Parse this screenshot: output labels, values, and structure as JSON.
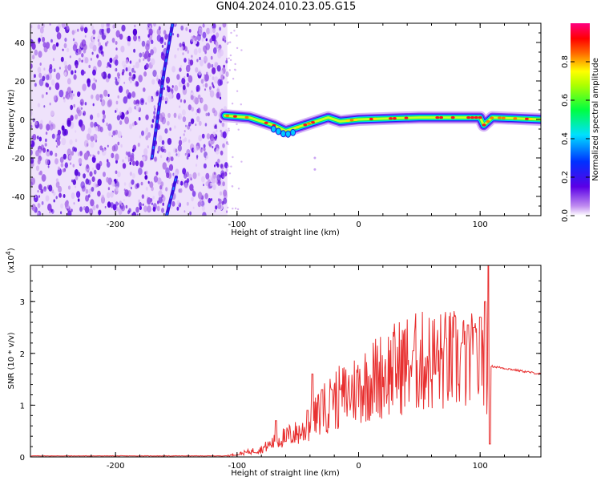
{
  "title": "GN04.2024.010.23.05.G15",
  "chart_data": [
    {
      "type": "heatmap",
      "xlabel": "Height of straight line (km)",
      "ylabel": "Frequency (Hz)",
      "xlim": [
        -270,
        150
      ],
      "ylim": [
        -50,
        50
      ],
      "xticks": [
        -200,
        -100,
        0,
        100
      ],
      "yticks": [
        -40,
        -20,
        0,
        20,
        40
      ],
      "colorbar": {
        "label": "Normalized spectral amplitude",
        "range": [
          0,
          1
        ],
        "ticks": [
          "0.0",
          "0.2",
          "0.4",
          "0.6",
          "0.8"
        ]
      },
      "features": {
        "noise_region_x": [
          -270,
          -108
        ],
        "satellite_trace_1": [
          [
            -170,
            -20
          ],
          [
            -160,
            25
          ],
          [
            -153,
            50
          ]
        ],
        "satellite_trace_2": [
          [
            -158,
            -50
          ],
          [
            -150,
            -30
          ]
        ],
        "ridge": [
          [
            -110,
            2
          ],
          [
            -90,
            1
          ],
          [
            -70,
            -3
          ],
          [
            -60,
            -6
          ],
          [
            -50,
            -4
          ],
          [
            -40,
            -2
          ],
          [
            -25,
            1
          ],
          [
            -15,
            -1
          ],
          [
            0,
            0
          ],
          [
            50,
            1
          ],
          [
            100,
            1
          ],
          [
            103,
            -3
          ],
          [
            110,
            1
          ],
          [
            150,
            0
          ]
        ]
      }
    },
    {
      "type": "line",
      "xlabel": "Height of straight line (km)",
      "ylabel": "SNR (10 * v/v)",
      "yscale_label": "(x10",
      "yscale_exp": "4",
      "yscale_close": ")",
      "xlim": [
        -270,
        150
      ],
      "ylim": [
        0,
        3.7
      ],
      "xticks": [
        -200,
        -100,
        0,
        100
      ],
      "yticks": [
        0,
        1,
        2,
        3
      ],
      "color": "#e83030",
      "envelope": [
        [
          -270,
          0.02
        ],
        [
          -110,
          0.02
        ],
        [
          -100,
          0.05
        ],
        [
          -80,
          0.15
        ],
        [
          -60,
          0.4
        ],
        [
          -45,
          0.5
        ],
        [
          -30,
          0.9
        ],
        [
          -20,
          1.1
        ],
        [
          -10,
          1.2
        ],
        [
          0,
          1.35
        ],
        [
          20,
          1.6
        ],
        [
          40,
          1.8
        ],
        [
          60,
          1.85
        ],
        [
          80,
          1.85
        ],
        [
          100,
          1.8
        ],
        [
          105,
          1.8
        ],
        [
          110,
          1.75
        ],
        [
          150,
          1.6
        ]
      ],
      "spikes": [
        [
          -68,
          0.7
        ],
        [
          -60,
          0.3
        ],
        [
          -42,
          0.9
        ],
        [
          -38,
          1.6
        ],
        [
          -30,
          1.3
        ],
        [
          -22,
          1.3
        ],
        [
          -15,
          1.3
        ],
        [
          45,
          2.05
        ],
        [
          85,
          2.2
        ],
        [
          90,
          2.55
        ],
        [
          95,
          2.5
        ],
        [
          100,
          2.7
        ],
        [
          104,
          3.0
        ],
        [
          107,
          3.7
        ],
        [
          108,
          0.25
        ]
      ]
    }
  ]
}
